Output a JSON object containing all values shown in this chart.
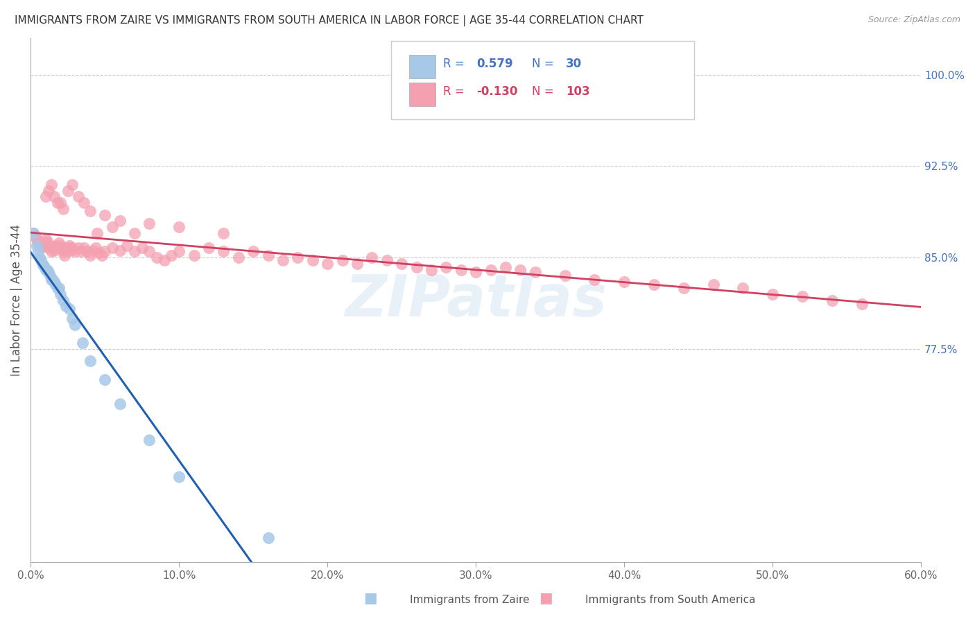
{
  "title": "IMMIGRANTS FROM ZAIRE VS IMMIGRANTS FROM SOUTH AMERICA IN LABOR FORCE | AGE 35-44 CORRELATION CHART",
  "source": "Source: ZipAtlas.com",
  "ylabel": "In Labor Force | Age 35-44",
  "legend_label1": "Immigrants from Zaire",
  "legend_label2": "Immigrants from South America",
  "R1": 0.579,
  "N1": 30,
  "R2": -0.13,
  "N2": 103,
  "color1": "#a8c8e8",
  "color2": "#f4a0b0",
  "line_color1": "#2060b0",
  "line_color2": "#d04060",
  "xlim": [
    0.0,
    0.6
  ],
  "ylim": [
    0.6,
    1.03
  ],
  "xticks": [
    0.0,
    0.1,
    0.2,
    0.3,
    0.4,
    0.5,
    0.6
  ],
  "xticklabels": [
    "0.0%",
    "10.0%",
    "20.0%",
    "30.0%",
    "40.0%",
    "50.0%",
    "60.0%"
  ],
  "yticks_right": [
    0.775,
    0.85,
    0.925,
    1.0
  ],
  "ytick_labels_right": [
    "77.5%",
    "85.0%",
    "92.5%",
    "100.0%"
  ],
  "watermark": "ZIPatlas",
  "background_color": "#ffffff",
  "grid_color": "#cccccc",
  "zaire_x": [
    0.002,
    0.004,
    0.005,
    0.006,
    0.007,
    0.008,
    0.009,
    0.01,
    0.011,
    0.012,
    0.013,
    0.014,
    0.015,
    0.016,
    0.017,
    0.018,
    0.019,
    0.02,
    0.022,
    0.024,
    0.026,
    0.028,
    0.03,
    0.035,
    0.04,
    0.05,
    0.06,
    0.08,
    0.1,
    0.16
  ],
  "zaire_y": [
    0.87,
    0.86,
    0.855,
    0.85,
    0.848,
    0.845,
    0.843,
    0.84,
    0.84,
    0.838,
    0.835,
    0.832,
    0.832,
    0.83,
    0.828,
    0.825,
    0.825,
    0.82,
    0.815,
    0.81,
    0.808,
    0.8,
    0.795,
    0.78,
    0.765,
    0.75,
    0.73,
    0.7,
    0.67,
    0.62
  ],
  "sa_x": [
    0.002,
    0.003,
    0.004,
    0.005,
    0.006,
    0.007,
    0.008,
    0.009,
    0.01,
    0.011,
    0.012,
    0.013,
    0.014,
    0.015,
    0.016,
    0.017,
    0.018,
    0.019,
    0.02,
    0.021,
    0.022,
    0.023,
    0.024,
    0.025,
    0.026,
    0.027,
    0.028,
    0.03,
    0.032,
    0.034,
    0.036,
    0.038,
    0.04,
    0.042,
    0.044,
    0.046,
    0.048,
    0.05,
    0.055,
    0.06,
    0.065,
    0.07,
    0.075,
    0.08,
    0.085,
    0.09,
    0.095,
    0.1,
    0.11,
    0.12,
    0.13,
    0.14,
    0.15,
    0.16,
    0.17,
    0.18,
    0.19,
    0.2,
    0.21,
    0.22,
    0.23,
    0.24,
    0.25,
    0.26,
    0.27,
    0.28,
    0.29,
    0.3,
    0.31,
    0.32,
    0.33,
    0.34,
    0.36,
    0.38,
    0.4,
    0.42,
    0.44,
    0.46,
    0.48,
    0.5,
    0.52,
    0.54,
    0.56,
    0.01,
    0.012,
    0.014,
    0.016,
    0.018,
    0.02,
    0.022,
    0.025,
    0.028,
    0.032,
    0.036,
    0.04,
    0.045,
    0.05,
    0.055,
    0.06,
    0.07,
    0.08,
    0.1,
    0.13
  ],
  "sa_y": [
    0.87,
    0.868,
    0.865,
    0.862,
    0.86,
    0.858,
    0.86,
    0.862,
    0.865,
    0.863,
    0.858,
    0.86,
    0.855,
    0.858,
    0.856,
    0.86,
    0.858,
    0.862,
    0.86,
    0.858,
    0.855,
    0.852,
    0.856,
    0.858,
    0.86,
    0.856,
    0.858,
    0.855,
    0.858,
    0.855,
    0.858,
    0.855,
    0.852,
    0.856,
    0.858,
    0.854,
    0.852,
    0.855,
    0.858,
    0.856,
    0.86,
    0.855,
    0.858,
    0.855,
    0.85,
    0.848,
    0.852,
    0.855,
    0.852,
    0.858,
    0.855,
    0.85,
    0.855,
    0.852,
    0.848,
    0.85,
    0.848,
    0.845,
    0.848,
    0.845,
    0.85,
    0.848,
    0.845,
    0.842,
    0.84,
    0.842,
    0.84,
    0.838,
    0.84,
    0.842,
    0.84,
    0.838,
    0.835,
    0.832,
    0.83,
    0.828,
    0.825,
    0.828,
    0.825,
    0.82,
    0.818,
    0.815,
    0.812,
    0.9,
    0.905,
    0.91,
    0.9,
    0.895,
    0.895,
    0.89,
    0.905,
    0.91,
    0.9,
    0.895,
    0.888,
    0.87,
    0.885,
    0.875,
    0.88,
    0.87,
    0.878,
    0.875,
    0.87
  ]
}
